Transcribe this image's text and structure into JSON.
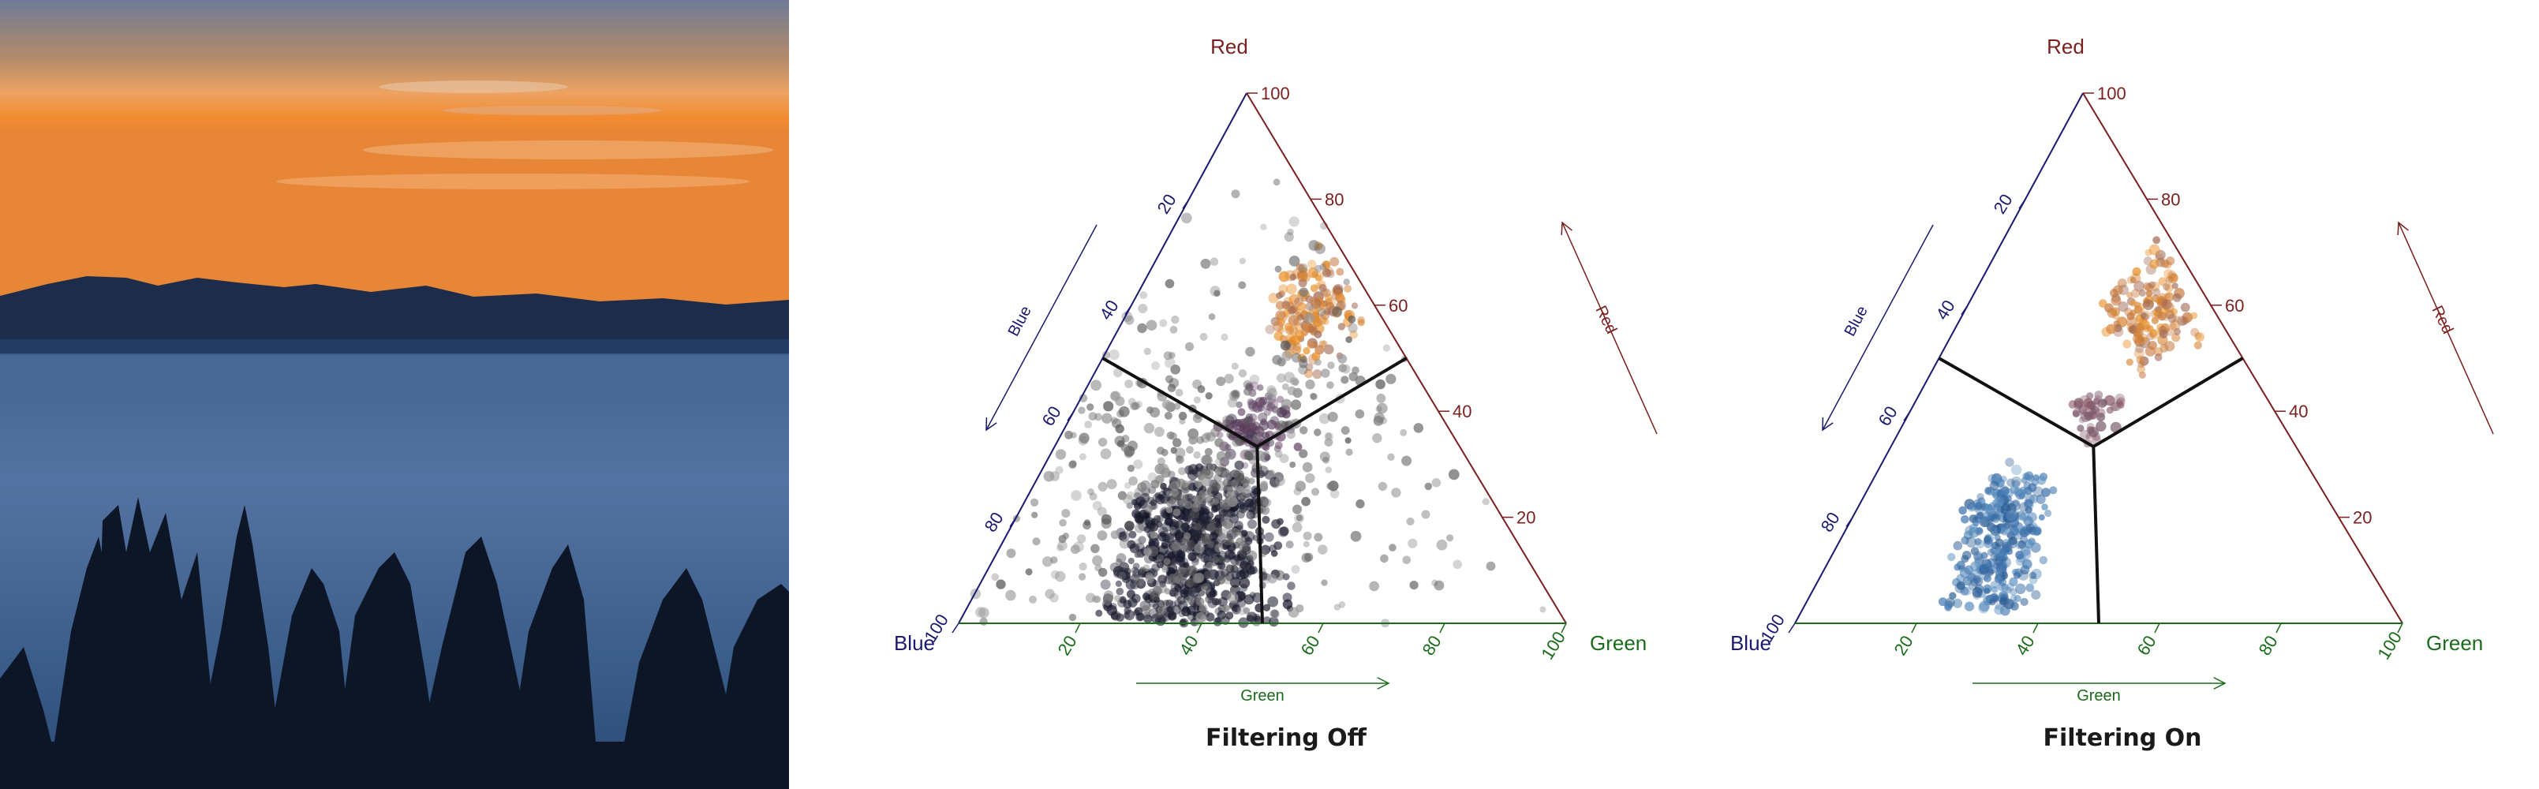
{
  "photo": {
    "description_icon": "sunset-photo"
  },
  "chart_data": [
    {
      "type": "scatter",
      "subtype": "ternary",
      "title": "Filtering Off",
      "axes": {
        "red": {
          "label": "Red",
          "arrow_label": "Red",
          "ticks": [
            20,
            40,
            60,
            80,
            100
          ],
          "color": "#7a1f1f"
        },
        "blue": {
          "label": "Blue",
          "arrow_label": "Blue",
          "ticks": [
            20,
            40,
            60,
            80,
            100
          ],
          "color": "#1a1a6e"
        },
        "green": {
          "label": "Green",
          "arrow_label": "Green",
          "ticks": [
            20,
            40,
            60,
            80,
            100
          ],
          "color": "#1a6b1a"
        }
      },
      "centroid": {
        "red": 33.3,
        "green": 33.3,
        "blue": 33.3
      },
      "clusters": [
        {
          "name": "",
          "red": [
            45,
            68
          ],
          "green": [
            22,
            36
          ],
          "blue": [
            2,
            18
          ],
          "count": 160,
          "colors": [
            "#e8902a",
            "#d8883a",
            "#c77a40",
            "#a06a55"
          ]
        },
        {
          "name": "",
          "red": [
            30,
            45
          ],
          "green": [
            25,
            38
          ],
          "blue": [
            25,
            40
          ],
          "count": 120,
          "colors": [
            "#6a4a6a",
            "#5a3a5a",
            "#4a3a55"
          ]
        },
        {
          "name": "",
          "red": [
            0,
            30
          ],
          "green": [
            20,
            45
          ],
          "blue": [
            35,
            75
          ],
          "count": 650,
          "colors": [
            "#141428",
            "#1a1a30",
            "#2a2a3a"
          ]
        },
        {
          "name": "",
          "red": [
            0,
            60
          ],
          "green": [
            0,
            60
          ],
          "blue": [
            0,
            95
          ],
          "count": 520,
          "colors": [
            "#7a7a7a",
            "#555555",
            "#999999"
          ]
        }
      ],
      "grid": false,
      "legend": "none"
    },
    {
      "type": "scatter",
      "subtype": "ternary",
      "title": "Filtering On",
      "axes": {
        "red": {
          "label": "Red",
          "arrow_label": "Red",
          "ticks": [
            20,
            40,
            60,
            80,
            100
          ],
          "color": "#7a1f1f"
        },
        "blue": {
          "label": "Blue",
          "arrow_label": "Blue",
          "ticks": [
            20,
            40,
            60,
            80,
            100
          ],
          "color": "#1a1a6e"
        },
        "green": {
          "label": "Green",
          "arrow_label": "Green",
          "ticks": [
            20,
            40,
            60,
            80,
            100
          ],
          "color": "#1a6b1a"
        }
      },
      "centroid": {
        "red": 33.3,
        "green": 33.3,
        "blue": 33.3
      },
      "clusters": [
        {
          "name": "",
          "red": [
            45,
            68
          ],
          "green": [
            22,
            36
          ],
          "blue": [
            2,
            18
          ],
          "count": 160,
          "colors": [
            "#e8902a",
            "#d8883a",
            "#c77a40",
            "#a06a55"
          ]
        },
        {
          "name": "",
          "red": [
            34,
            45
          ],
          "green": [
            27,
            36
          ],
          "blue": [
            25,
            35
          ],
          "count": 50,
          "colors": [
            "#8a5a6a",
            "#7a5a6a"
          ]
        },
        {
          "name": "",
          "red": [
            2,
            30
          ],
          "green": [
            20,
            32
          ],
          "blue": [
            45,
            72
          ],
          "count": 320,
          "colors": [
            "#3a6ea8",
            "#2f5e94",
            "#4a7fb5",
            "#5a8ec0"
          ]
        }
      ],
      "grid": false,
      "legend": "none"
    }
  ]
}
